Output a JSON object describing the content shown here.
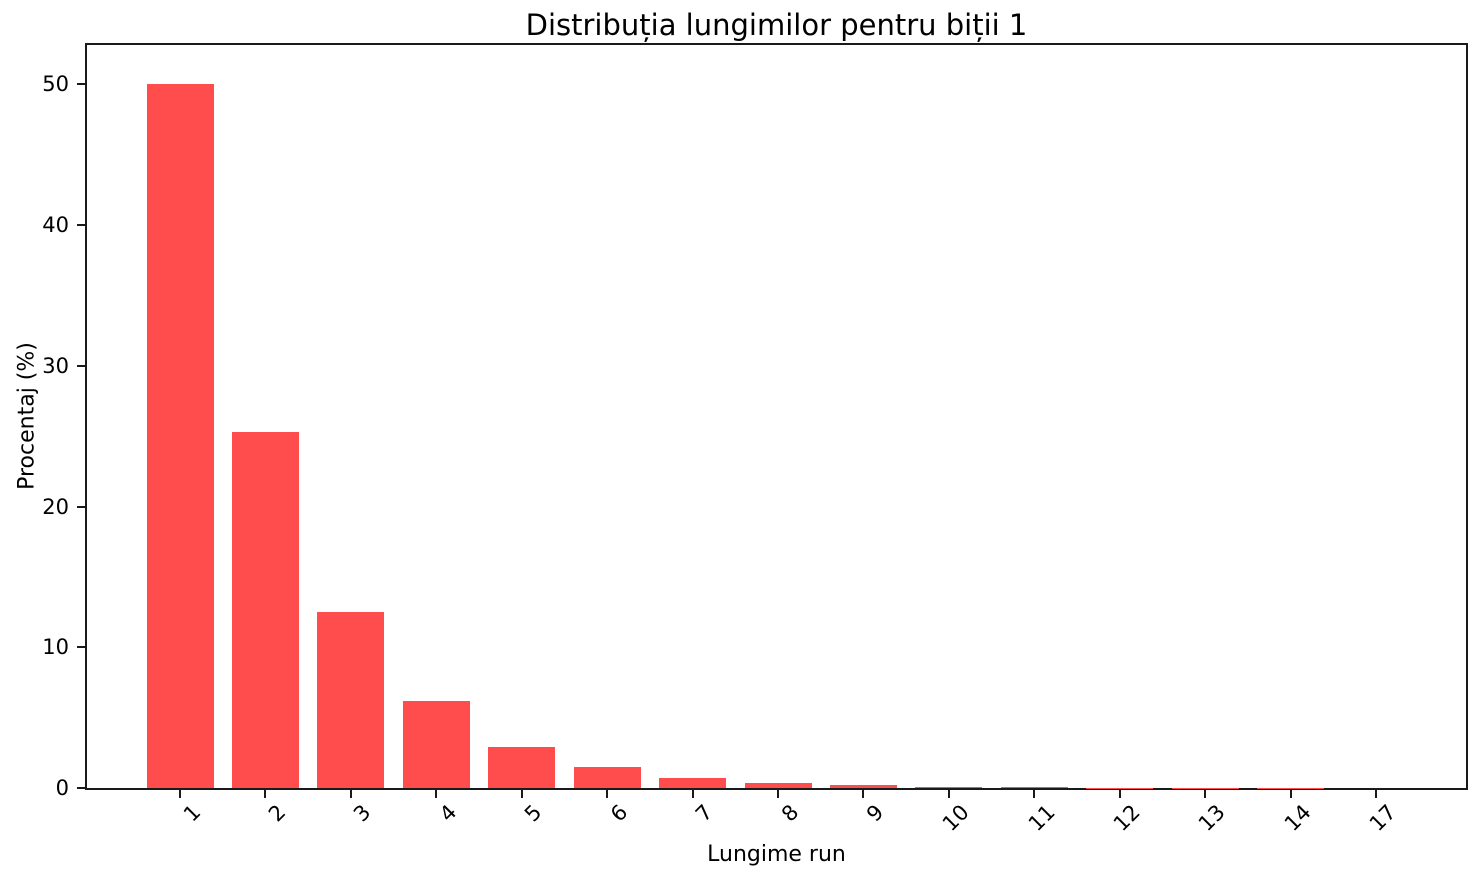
{
  "chart_data": {
    "type": "bar",
    "title": "Distribuția lungimilor pentru biții 1",
    "xlabel": "Lungime run",
    "ylabel": "Procentaj (%)",
    "categories": [
      "1",
      "2",
      "3",
      "4",
      "5",
      "6",
      "7",
      "8",
      "9",
      "10",
      "11",
      "12",
      "13",
      "14",
      "17"
    ],
    "values": [
      50.0,
      25.3,
      12.5,
      6.2,
      2.9,
      1.5,
      0.7,
      0.35,
      0.2,
      0.1,
      0.05,
      0.03,
      0.02,
      0.01,
      0.005
    ],
    "yticks": [
      0,
      10,
      20,
      30,
      40,
      50
    ],
    "ylim": [
      0,
      52.8
    ],
    "grid": false,
    "legend": null,
    "x_tick_rotation": 45,
    "bar_color": "#ff4d4d",
    "background_color": "#ffffff",
    "spine_color": "#1a1a1a",
    "text_color": "#000000"
  }
}
